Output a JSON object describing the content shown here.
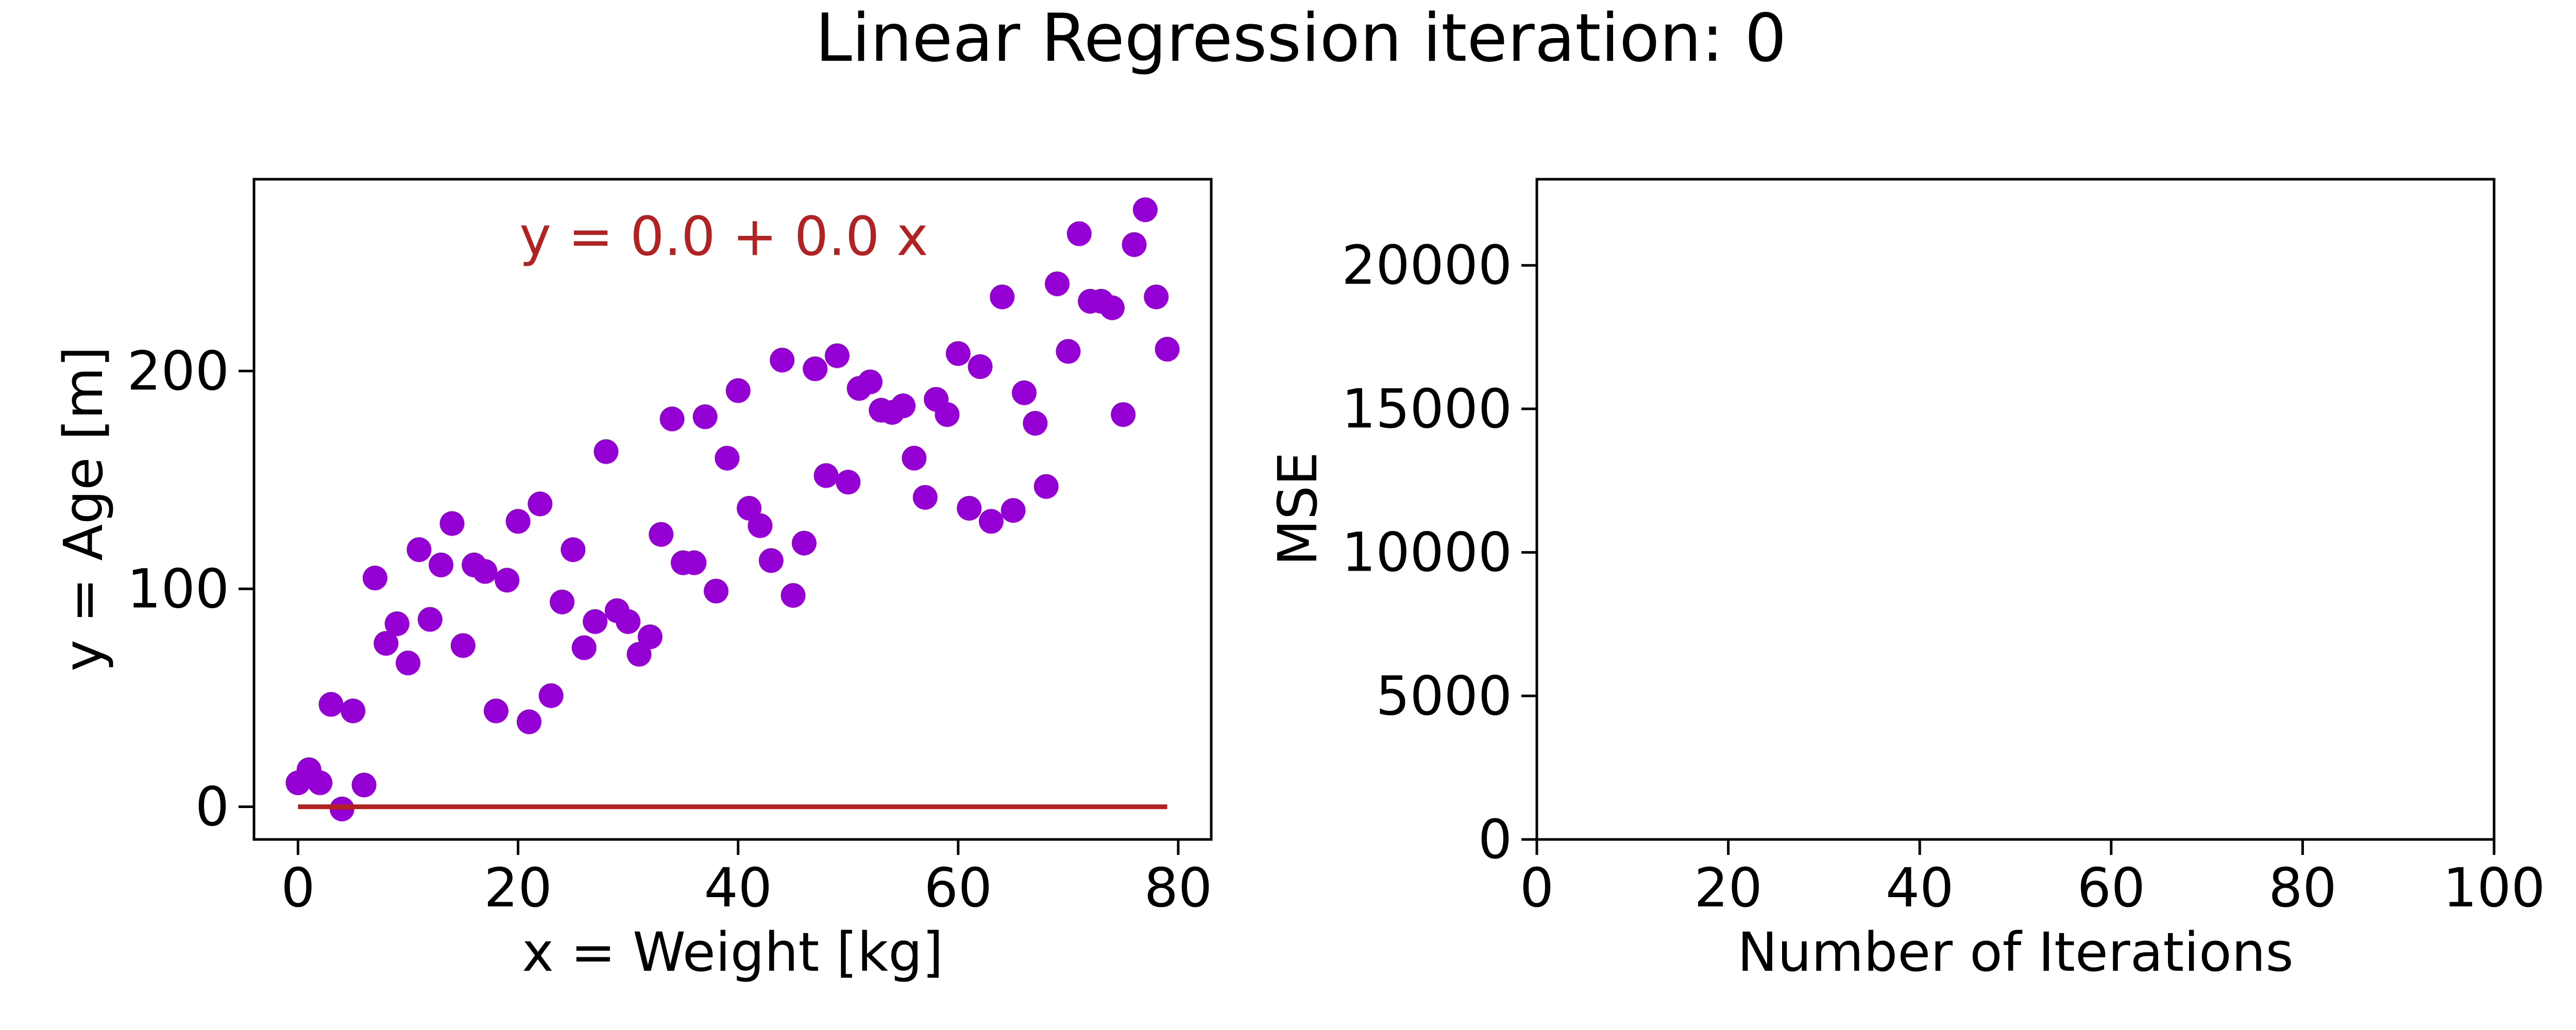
{
  "figure": {
    "title": "Linear Regression iteration: 0"
  },
  "chart_data": [
    {
      "type": "scatter",
      "xlabel": "x = Weight [kg]",
      "ylabel": "y = Age [m]",
      "xlim": [
        -4,
        83
      ],
      "ylim": [
        -15,
        288
      ],
      "xticks": [
        0,
        20,
        40,
        60,
        80
      ],
      "yticks": [
        0,
        100,
        200
      ],
      "grid": false,
      "point_color": "#9400d3",
      "line_color": "#b22222",
      "equation": "y = 0.0 + 0.0 x",
      "x": [
        0,
        1,
        2,
        3,
        4,
        5,
        6,
        7,
        8,
        9,
        10,
        11,
        12,
        13,
        14,
        15,
        16,
        17,
        18,
        19,
        20,
        21,
        22,
        23,
        24,
        25,
        26,
        27,
        28,
        29,
        30,
        31,
        32,
        33,
        34,
        35,
        36,
        37,
        38,
        39,
        40,
        41,
        42,
        43,
        44,
        45,
        46,
        47,
        48,
        49,
        50,
        51,
        52,
        53,
        54,
        55,
        56,
        57,
        58,
        59,
        60,
        61,
        62,
        63,
        64,
        65,
        66,
        67,
        68,
        69,
        70,
        71,
        72,
        73,
        74,
        75,
        76,
        77,
        78,
        79
      ],
      "y": [
        11,
        17,
        11,
        47,
        -1,
        44,
        10,
        105,
        75,
        84,
        66,
        118,
        86,
        111,
        130,
        74,
        111,
        108,
        44,
        104,
        131,
        39,
        139,
        51,
        94,
        118,
        73,
        85,
        163,
        90,
        85,
        70,
        78,
        125,
        178,
        112,
        112,
        179,
        99,
        160,
        191,
        137,
        129,
        113,
        205,
        97,
        121,
        201,
        152,
        207,
        149,
        192,
        195,
        182,
        181,
        184,
        160,
        142,
        187,
        180,
        208,
        137,
        202,
        131,
        234,
        136,
        190,
        176,
        147,
        240,
        209,
        263,
        232,
        232,
        229,
        180,
        258,
        274,
        234,
        210
      ],
      "fit_line": {
        "x": [
          0,
          79
        ],
        "y": [
          0,
          0
        ]
      }
    },
    {
      "type": "line",
      "xlabel": "Number of Iterations",
      "ylabel": "MSE",
      "xlim": [
        0,
        100
      ],
      "ylim": [
        0,
        23000
      ],
      "xticks": [
        0,
        20,
        40,
        60,
        80,
        100
      ],
      "yticks": [
        0,
        5000,
        10000,
        15000,
        20000
      ],
      "grid": false,
      "x": [],
      "y": []
    }
  ]
}
